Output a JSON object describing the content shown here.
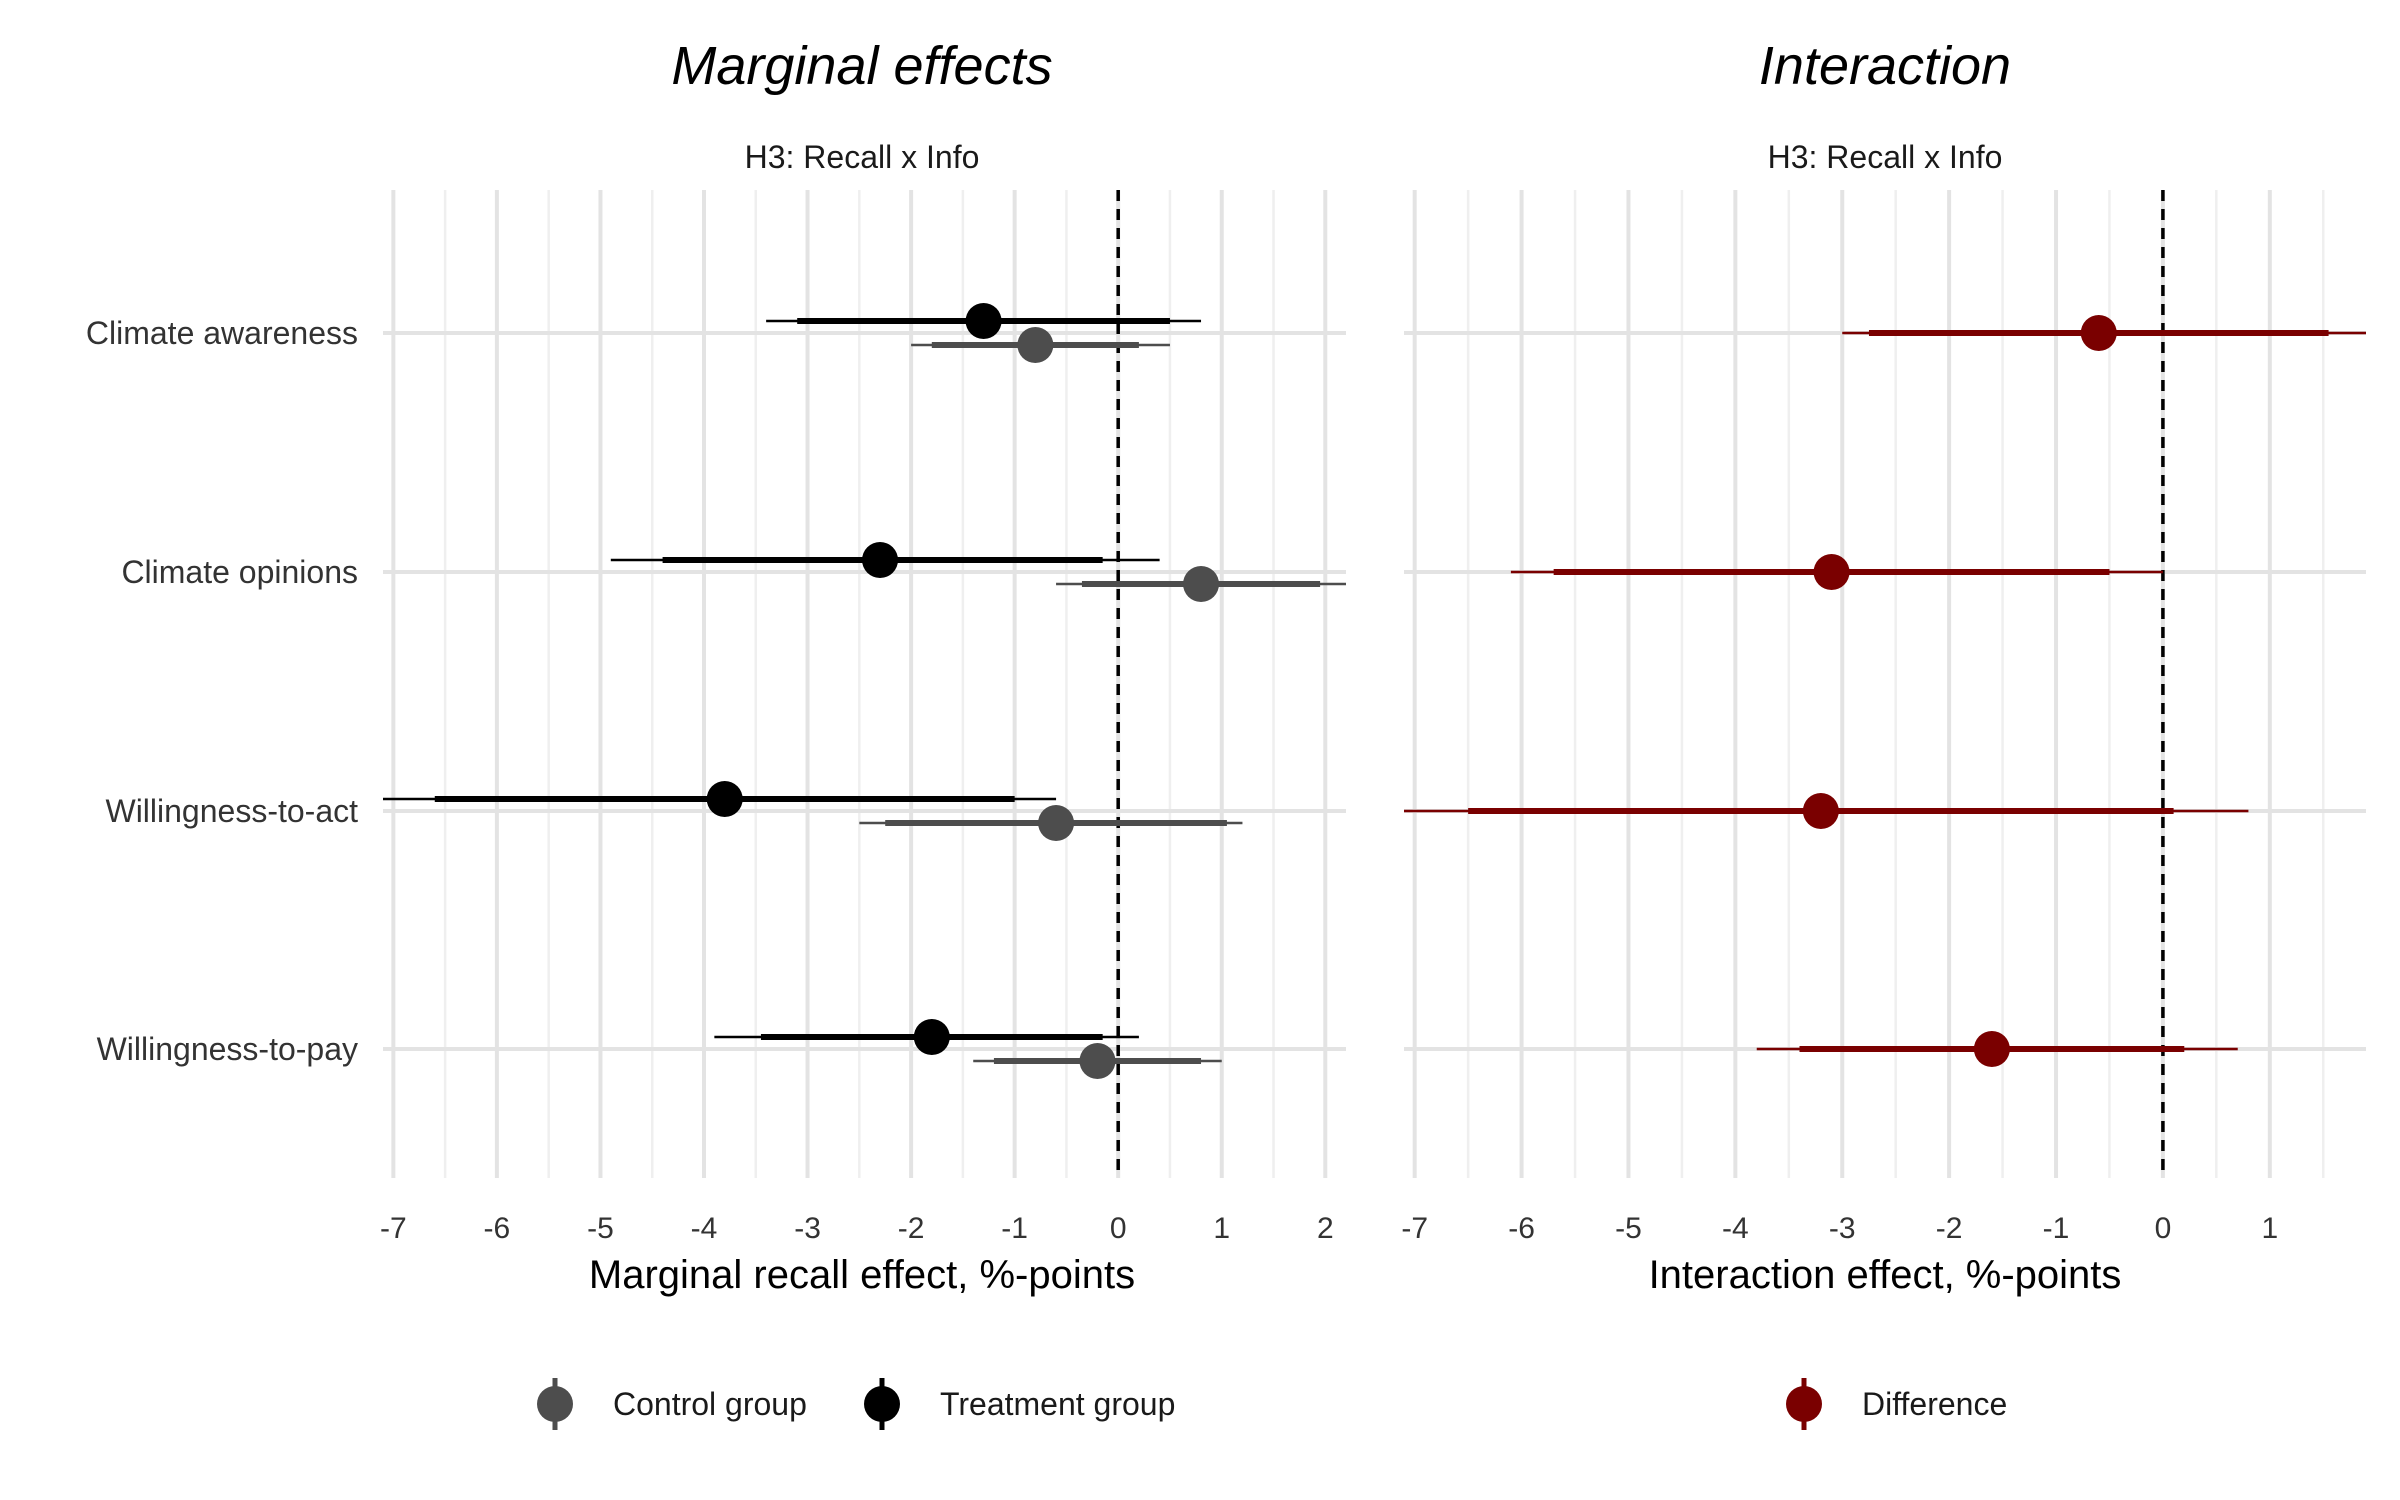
{
  "chart_data": [
    {
      "type": "forest",
      "title": "Marginal effects",
      "subtitle": "H3: Recall x Info",
      "xlabel": "Marginal recall effect, %-points",
      "xlim": [
        -7.1,
        2.2
      ],
      "xticks": [
        -7,
        -6,
        -5,
        -4,
        -3,
        -2,
        -1,
        0,
        1,
        2
      ],
      "reference_line": 0,
      "grid": true,
      "categories": [
        "Climate awareness",
        "Climate opinions",
        "Willingness-to-act",
        "Willingness-to-pay"
      ],
      "series": [
        {
          "name": "Treatment group",
          "color": "#000000",
          "points": [
            {
              "category": "Climate awareness",
              "estimate": -1.3,
              "ci_inner": [
                -3.1,
                0.5
              ],
              "ci_outer": [
                -3.4,
                0.8
              ]
            },
            {
              "category": "Climate opinions",
              "estimate": -2.3,
              "ci_inner": [
                -4.4,
                -0.15
              ],
              "ci_outer": [
                -4.9,
                0.4
              ]
            },
            {
              "category": "Willingness-to-act",
              "estimate": -3.8,
              "ci_inner": [
                -6.6,
                -1.0
              ],
              "ci_outer": [
                -7.1,
                -0.6
              ]
            },
            {
              "category": "Willingness-to-pay",
              "estimate": -1.8,
              "ci_inner": [
                -3.45,
                -0.15
              ],
              "ci_outer": [
                -3.9,
                0.2
              ]
            }
          ]
        },
        {
          "name": "Control group",
          "color": "#4d4d4d",
          "points": [
            {
              "category": "Climate awareness",
              "estimate": -0.8,
              "ci_inner": [
                -1.8,
                0.2
              ],
              "ci_outer": [
                -2.0,
                0.5
              ]
            },
            {
              "category": "Climate opinions",
              "estimate": 0.8,
              "ci_inner": [
                -0.35,
                1.95
              ],
              "ci_outer": [
                -0.6,
                2.2
              ]
            },
            {
              "category": "Willingness-to-act",
              "estimate": -0.6,
              "ci_inner": [
                -2.25,
                1.05
              ],
              "ci_outer": [
                -2.5,
                1.2
              ]
            },
            {
              "category": "Willingness-to-pay",
              "estimate": -0.2,
              "ci_inner": [
                -1.2,
                0.8
              ],
              "ci_outer": [
                -1.4,
                1.0
              ]
            }
          ]
        }
      ],
      "legend": {
        "position": "bottom",
        "entries": [
          "Control group",
          "Treatment group"
        ]
      }
    },
    {
      "type": "forest",
      "title": "Interaction",
      "subtitle": "H3: Recall x Info",
      "xlabel": "Interaction effect, %-points",
      "xlim": [
        -7.1,
        1.9
      ],
      "xticks": [
        -7,
        -6,
        -5,
        -4,
        -3,
        -2,
        -1,
        0,
        1
      ],
      "reference_line": 0,
      "grid": true,
      "categories": [
        "Climate awareness",
        "Climate opinions",
        "Willingness-to-act",
        "Willingness-to-pay"
      ],
      "series": [
        {
          "name": "Difference",
          "color": "#7a0000",
          "points": [
            {
              "category": "Climate awareness",
              "estimate": -0.6,
              "ci_inner": [
                -2.75,
                1.55
              ],
              "ci_outer": [
                -3.0,
                1.9
              ]
            },
            {
              "category": "Climate opinions",
              "estimate": -3.1,
              "ci_inner": [
                -5.7,
                -0.5
              ],
              "ci_outer": [
                -6.1,
                0.0
              ]
            },
            {
              "category": "Willingness-to-act",
              "estimate": -3.2,
              "ci_inner": [
                -6.5,
                0.1
              ],
              "ci_outer": [
                -7.1,
                0.8
              ]
            },
            {
              "category": "Willingness-to-pay",
              "estimate": -1.6,
              "ci_inner": [
                -3.4,
                0.2
              ],
              "ci_outer": [
                -3.8,
                0.7
              ]
            }
          ]
        }
      ],
      "legend": {
        "position": "bottom",
        "entries": [
          "Difference"
        ]
      }
    }
  ]
}
